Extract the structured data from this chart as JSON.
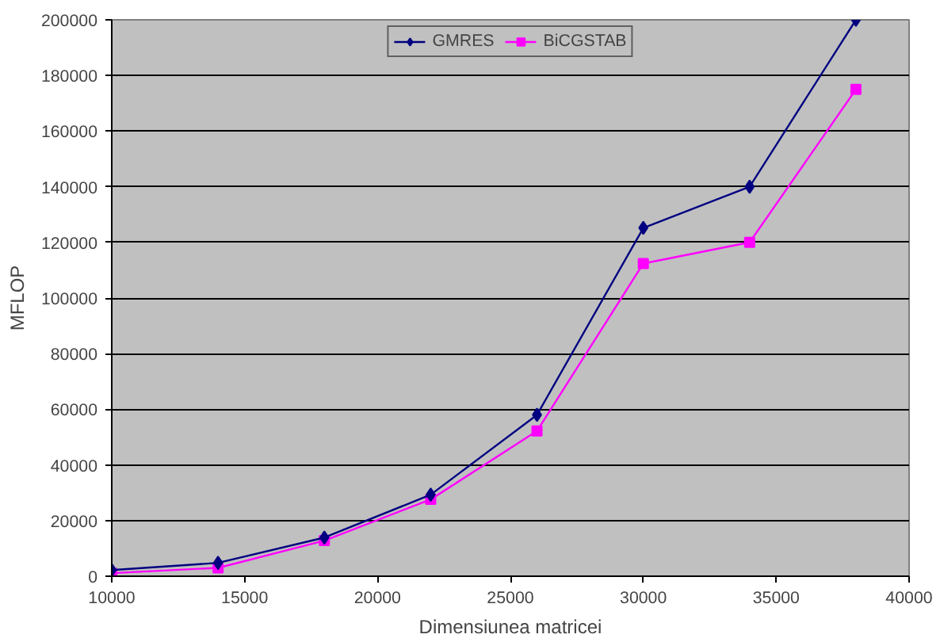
{
  "chart_data": {
    "type": "line",
    "xlabel": "Dimensiunea matricei",
    "ylabel": "MFLOP",
    "x": [
      10000,
      14000,
      18000,
      22000,
      26000,
      30000,
      34000,
      38000
    ],
    "series": [
      {
        "name": "GMRES",
        "color": "#000080",
        "marker": "diamond",
        "values": [
          2200,
          4800,
          13900,
          29300,
          58000,
          125200,
          140000,
          200000
        ]
      },
      {
        "name": "BiCGSTAB",
        "color": "#ff00ff",
        "marker": "square",
        "values": [
          1100,
          3000,
          12800,
          27600,
          52200,
          112400,
          120000,
          175000
        ]
      }
    ],
    "xlim": [
      10000,
      40000
    ],
    "xticks": [
      10000,
      15000,
      20000,
      25000,
      30000,
      35000,
      40000
    ],
    "ylim": [
      0,
      200000
    ],
    "yticks": [
      0,
      20000,
      40000,
      60000,
      80000,
      100000,
      120000,
      140000,
      160000,
      180000,
      200000
    ],
    "grid": "y",
    "legend": "top",
    "line_style": "solid"
  }
}
